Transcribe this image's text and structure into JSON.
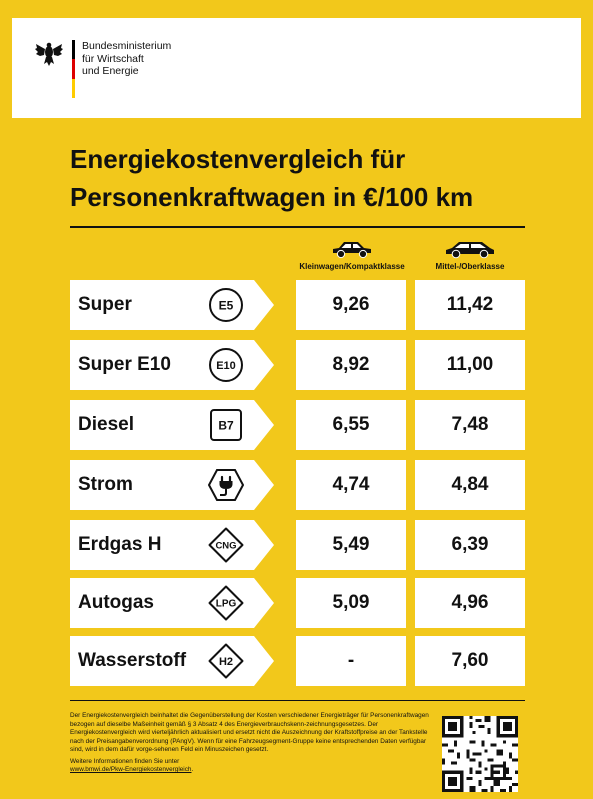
{
  "header": {
    "ministry_lines": [
      "Bundesministerium",
      "für Wirtschaft",
      "und Energie"
    ],
    "flag_colors": [
      "#000000",
      "#dd0000",
      "#ffcc00"
    ],
    "logo_icon": "federal-eagle-icon"
  },
  "title": {
    "line1": "Energiekostenvergleich für",
    "line2": "Personenkraftwagen in €/100 km"
  },
  "columns": {
    "small": {
      "label": "Kleinwagen/Kompaktklasse",
      "icon": "small-car-icon"
    },
    "large": {
      "label": "Mittel-/Oberklasse",
      "icon": "large-car-icon"
    }
  },
  "rows": [
    {
      "fuel": "Super",
      "badge": "E5",
      "badge_shape": "circle",
      "small": "9,26",
      "large": "11,42"
    },
    {
      "fuel": "Super E10",
      "badge": "E10",
      "badge_shape": "circle",
      "small": "8,92",
      "large": "11,00"
    },
    {
      "fuel": "Diesel",
      "badge": "B7",
      "badge_shape": "square",
      "small": "6,55",
      "large": "7,48"
    },
    {
      "fuel": "Strom",
      "badge": "",
      "badge_shape": "hexagon-plug",
      "small": "4,74",
      "large": "4,84"
    },
    {
      "fuel": "Erdgas H",
      "badge": "CNG",
      "badge_shape": "diamond",
      "small": "5,49",
      "large": "6,39"
    },
    {
      "fuel": "Autogas",
      "badge": "LPG",
      "badge_shape": "diamond",
      "small": "5,09",
      "large": "4,96"
    },
    {
      "fuel": "Wasserstoff",
      "badge": "H2",
      "badge_shape": "diamond",
      "small": "-",
      "large": "7,60"
    }
  ],
  "footer": {
    "text": "Der Energiekostenvergleich beinhaltet die Gegenüberstellung der Kosten verschiedener Energieträger für Personenkraftwagen bezogen auf dieselbe Maßeinheit gemäß § 3 Absatz 4 des Energieverbrauchskenn-zeichnungsgesetzes. Der Energiekostenvergleich wird vierteljährlich aktualisiert und ersetzt nicht die Auszeichnung der Kraftstoffpreise an der Tankstelle nach der Preisangabenverordnung (PAngV). Wenn für eine Fahrzeugsegment-Gruppe keine entsprechenden Daten verfügbar sind, wird in dem dafür vorge-sehenen Feld ein Minuszeichen gesetzt.",
    "more_info": "Weitere Informationen finden Sie unter",
    "link": "www.bmwi.de/Pkw-Energiekostenvergleich",
    "link_suffix": ".",
    "qr_icon": "qr-code-icon"
  },
  "colors": {
    "background": "#f2c81b",
    "cell": "#ffffff",
    "text": "#111111"
  }
}
